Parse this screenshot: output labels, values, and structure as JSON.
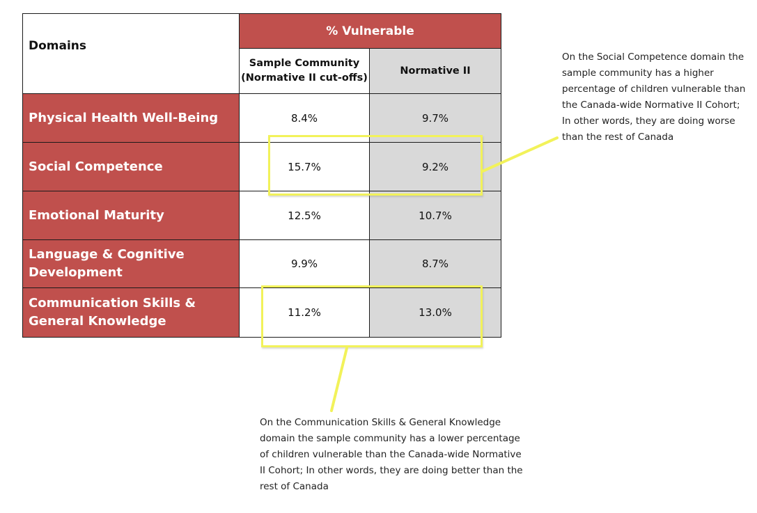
{
  "table": {
    "domains_header": "Domains",
    "vulnerable_header": "% Vulnerable",
    "col_sample_line1": "Sample Community",
    "col_sample_line2": "(Normative II cut-offs)",
    "col_normative": "Normative II",
    "rows": [
      {
        "name": "Physical Health Well-Being",
        "sample": "8.4%",
        "normative": "9.7%"
      },
      {
        "name": "Social Competence",
        "sample": "15.7%",
        "normative": "9.2%"
      },
      {
        "name": "Emotional Maturity",
        "sample": "12.5%",
        "normative": "10.7%"
      },
      {
        "name_line1": "Language & Cognitive",
        "name_line2": "Development",
        "sample": "9.9%",
        "normative": "8.7%"
      },
      {
        "name_line1": "Communication Skills &",
        "name_line2": "General Knowledge",
        "sample": "11.2%",
        "normative": "13.0%"
      }
    ]
  },
  "callouts": {
    "social": [
      "On the Social Competence domain the",
      "sample community has a higher",
      "percentage of children vulnerable than",
      "the Canada-wide Normative II Cohort;",
      "In other words, they are doing worse",
      "than the rest of Canada"
    ],
    "communication": [
      "On the Communication Skills & General Knowledge",
      "domain the sample community has a lower percentage",
      "of children vulnerable than the Canada-wide Normative",
      "II Cohort; In other words, they are doing better than the",
      "rest of Canada"
    ]
  },
  "colors": {
    "header_red": "#c0504d",
    "normative_grey": "#d9d9d9",
    "highlight_yellow": "#f2f25a"
  }
}
